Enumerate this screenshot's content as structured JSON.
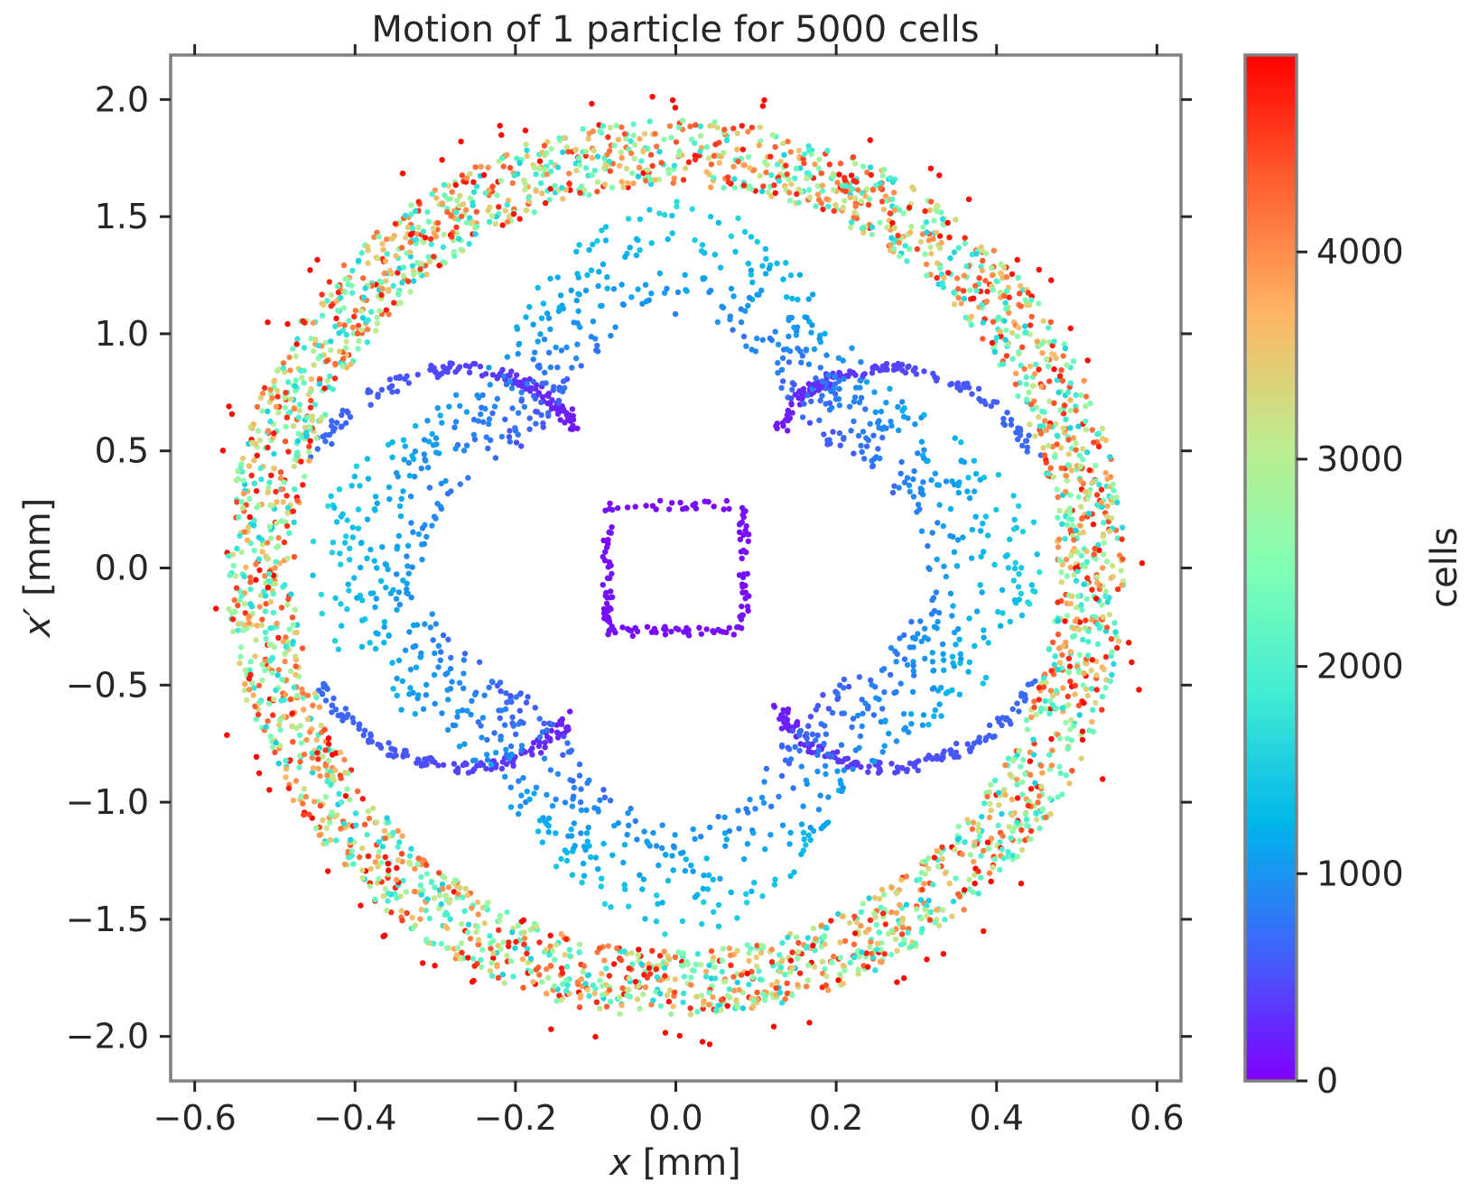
{
  "chart_data": {
    "type": "scatter",
    "title": "Motion of 1 particle for 5000 cells",
    "xlabel_var": "x",
    "xlabel_unit": "[mm]",
    "ylabel_var": "x′",
    "ylabel_unit": "[mm]",
    "xlim": [
      -0.63,
      0.63
    ],
    "ylim": [
      -2.19,
      2.19
    ],
    "xticks": [
      -0.6,
      -0.4,
      -0.2,
      0.0,
      0.2,
      0.4,
      0.6
    ],
    "xtick_labels": [
      "−0.6",
      "−0.4",
      "−0.2",
      "0.0",
      "0.2",
      "0.4",
      "0.6"
    ],
    "yticks": [
      2.0,
      1.5,
      1.0,
      0.5,
      0.0,
      -0.5,
      -1.0,
      -1.5,
      -2.0
    ],
    "ytick_labels": [
      "2.0",
      "1.5",
      "1.0",
      "0.5",
      "0.0",
      "−0.5",
      "−1.0",
      "−1.5",
      "−2.0"
    ],
    "grid": false,
    "n_points": 5000,
    "colorbar": {
      "label": "cells",
      "colormap": "rainbow",
      "range": [
        0,
        4950
      ],
      "ticks": [
        0,
        1000,
        2000,
        3000,
        4000
      ],
      "tick_labels": [
        "0",
        "1000",
        "2000",
        "3000",
        "4000"
      ]
    },
    "structure": {
      "inner_square": {
        "half_width_x": 0.085,
        "half_width_y": 0.27,
        "cells_range": [
          0,
          150
        ]
      },
      "arms": {
        "cells_range": [
          150,
          700
        ]
      },
      "middle_band": {
        "radius_fraction": [
          0.55,
          0.8
        ],
        "cells_range": [
          600,
          1800
        ]
      },
      "outer_ring": {
        "radius_fraction": [
          0.85,
          1.0
        ],
        "cells_range": [
          1500,
          4950
        ]
      },
      "ring_semi_axes": {
        "x": 0.56,
        "y": 1.92
      }
    }
  },
  "colors": {
    "frame": "#808080",
    "text": "#262626",
    "rainbow_stops": [
      "#8000ff",
      "#4062fa",
      "#00b5eb",
      "#40ecd4",
      "#80ffb4",
      "#c0eb8d",
      "#ffb462",
      "#ff6030",
      "#ff0000"
    ]
  }
}
